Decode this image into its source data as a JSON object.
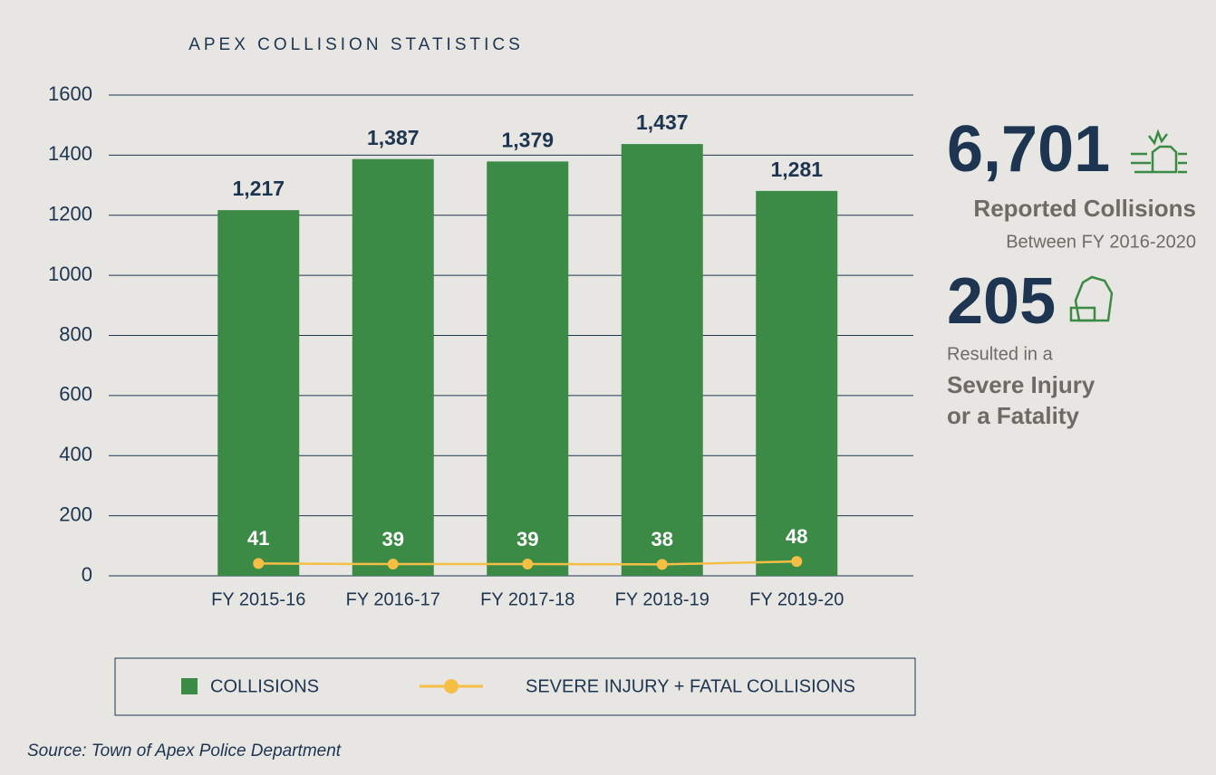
{
  "chart_data": {
    "type": "bar",
    "title": "APEX COLLISION STATISTICS",
    "categories": [
      "FY 2015-16",
      "FY 2016-17",
      "FY 2017-18",
      "FY 2018-19",
      "FY 2019-20"
    ],
    "series": [
      {
        "name": "COLLISIONS",
        "type": "bar",
        "color": "#3b8a45",
        "values": [
          1217,
          1387,
          1379,
          1437,
          1281
        ],
        "value_labels": [
          "1,217",
          "1,387",
          "1,379",
          "1,437",
          "1,281"
        ]
      },
      {
        "name": "SEVERE INJURY + FATAL COLLISIONS",
        "type": "line",
        "color": "#f5bf45",
        "values": [
          41,
          39,
          39,
          38,
          48
        ]
      }
    ],
    "ylim": [
      0,
      1600
    ],
    "yticks": [
      0,
      200,
      400,
      600,
      800,
      1000,
      1200,
      1400,
      1600
    ],
    "grid": true
  },
  "side_panel": {
    "collisions": {
      "value": "6,701",
      "label": "Reported Collisions",
      "note": "Between FY 2016-2020"
    },
    "severe": {
      "value": "205",
      "note": "Resulted in a",
      "label_lines": [
        "Severe Injury",
        "or a Fatality"
      ]
    }
  },
  "source": "Source: Town of Apex Police Department"
}
